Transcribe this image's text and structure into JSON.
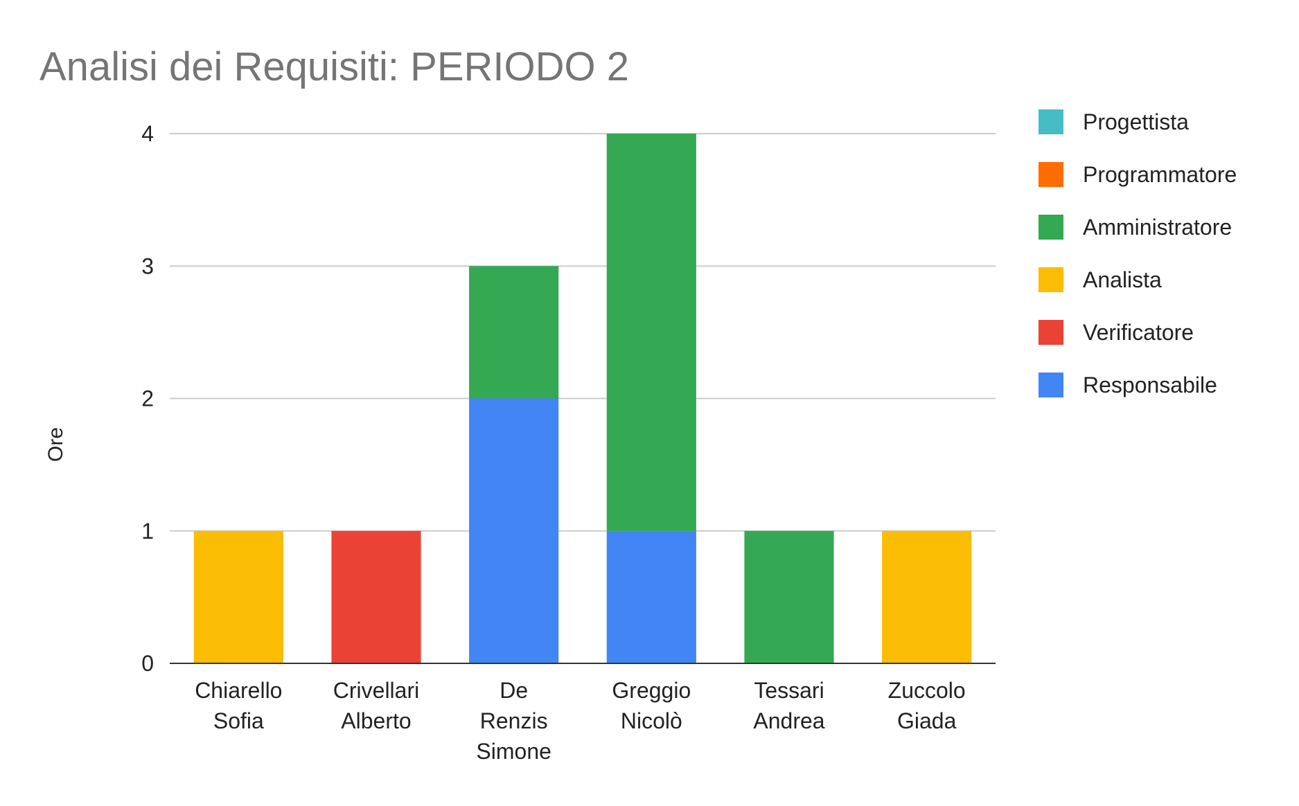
{
  "chart_data": {
    "type": "bar",
    "stacked": true,
    "title": "Analisi dei Requisiti: PERIODO 2",
    "xlabel": "",
    "ylabel": "Ore",
    "ylim": [
      0,
      4
    ],
    "yticks": [
      0,
      1,
      2,
      3,
      4
    ],
    "grid": true,
    "legend_position": "right",
    "categories": [
      [
        "Chiarello",
        "Sofia"
      ],
      [
        "Crivellari",
        "Alberto"
      ],
      [
        "De",
        "Renzis",
        "Simone"
      ],
      [
        "Greggio",
        "Nicolò"
      ],
      [
        "Tessari",
        "Andrea"
      ],
      [
        "Zuccolo",
        "Giada"
      ]
    ],
    "series": [
      {
        "name": "Responsabile",
        "color": "#4285f4",
        "values": [
          0,
          0,
          2,
          1,
          0,
          0
        ]
      },
      {
        "name": "Verificatore",
        "color": "#ea4335",
        "values": [
          0,
          1,
          0,
          0,
          0,
          0
        ]
      },
      {
        "name": "Analista",
        "color": "#fbbc04",
        "values": [
          1,
          0,
          0,
          0,
          0,
          1
        ]
      },
      {
        "name": "Amministratore",
        "color": "#34a853",
        "values": [
          0,
          0,
          1,
          3,
          1,
          0
        ]
      },
      {
        "name": "Programmatore",
        "color": "#ff6d01",
        "values": [
          0,
          0,
          0,
          0,
          0,
          0
        ]
      },
      {
        "name": "Progettista",
        "color": "#46bdc6",
        "values": [
          0,
          0,
          0,
          0,
          0,
          0
        ]
      }
    ],
    "legend_order": [
      "Progettista",
      "Programmatore",
      "Amministratore",
      "Analista",
      "Verificatore",
      "Responsabile"
    ]
  }
}
